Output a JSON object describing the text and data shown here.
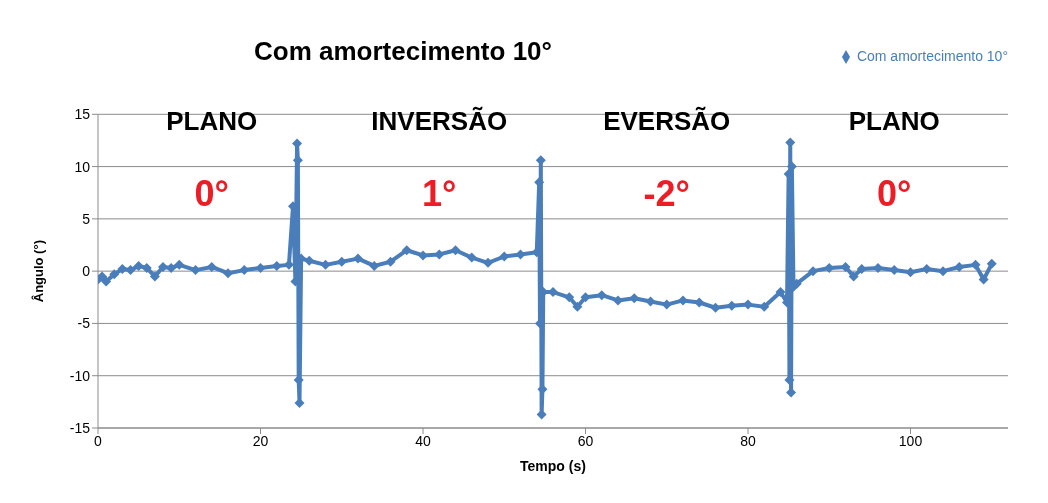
{
  "chart_data": {
    "type": "line",
    "title": "Com amortecimento 10°",
    "xlabel": "Tempo (s)",
    "ylabel": "Ângulo (°)",
    "x": [
      0,
      0.5,
      1,
      2,
      3,
      4,
      5,
      6,
      7,
      8,
      9,
      10,
      12,
      14,
      16,
      18,
      20,
      22,
      23.5,
      24,
      24.3,
      24.5,
      24.6,
      24.7,
      24.8,
      25,
      26,
      28,
      30,
      32,
      34,
      36,
      38,
      40,
      42,
      44,
      46,
      48,
      50,
      52,
      54,
      54.3,
      54.4,
      54.5,
      54.6,
      54.7,
      54.8,
      56,
      58,
      59,
      60,
      62,
      64,
      66,
      68,
      70,
      72,
      74,
      76,
      78,
      80,
      82,
      84,
      84.8,
      85,
      85.1,
      85.2,
      85.3,
      85.4,
      85.6,
      86,
      88,
      90,
      92,
      93,
      94,
      96,
      98,
      100,
      102,
      104,
      106,
      108,
      109,
      110
    ],
    "series": [
      {
        "name": "Com amortecimento 10°",
        "color": "#4a7ebb",
        "values": [
          -0.8,
          -0.5,
          -1.0,
          -0.3,
          0.2,
          0.1,
          0.5,
          0.3,
          -0.5,
          0.4,
          0.3,
          0.6,
          0.1,
          0.4,
          -0.2,
          0.1,
          0.3,
          0.5,
          0.6,
          6.2,
          -1.0,
          12.2,
          10.6,
          -10.4,
          -12.6,
          1.2,
          1.0,
          0.6,
          0.9,
          1.2,
          0.5,
          0.9,
          2.0,
          1.5,
          1.6,
          2.0,
          1.3,
          0.8,
          1.4,
          1.6,
          1.8,
          8.5,
          -5.0,
          10.6,
          -13.7,
          -11.3,
          -2.0,
          -2.0,
          -2.5,
          -3.4,
          -2.5,
          -2.3,
          -2.8,
          -2.6,
          -2.9,
          -3.2,
          -2.8,
          -3.0,
          -3.5,
          -3.3,
          -3.2,
          -3.4,
          -2.0,
          -3.0,
          9.3,
          -10.4,
          12.3,
          -11.6,
          10.0,
          -1.5,
          -1.2,
          0.0,
          0.3,
          0.4,
          -0.5,
          0.2,
          0.3,
          0.1,
          -0.1,
          0.2,
          0.0,
          0.4,
          0.6,
          -0.8,
          0.7
        ]
      }
    ],
    "xlim": [
      0,
      112
    ],
    "xticks": [
      0,
      20,
      40,
      60,
      80,
      100
    ],
    "ylim": [
      -15,
      15
    ],
    "yticks": [
      -15,
      -10,
      -5,
      0,
      5,
      10,
      15
    ],
    "grid": "y",
    "legend": "top right",
    "marker": "diamond",
    "line_style": "solid",
    "annotations": [
      "PLANO",
      "0°",
      "INVERSÃO",
      "1°",
      "EVERSÃO",
      "-2°",
      "PLANO",
      "0°"
    ]
  }
}
